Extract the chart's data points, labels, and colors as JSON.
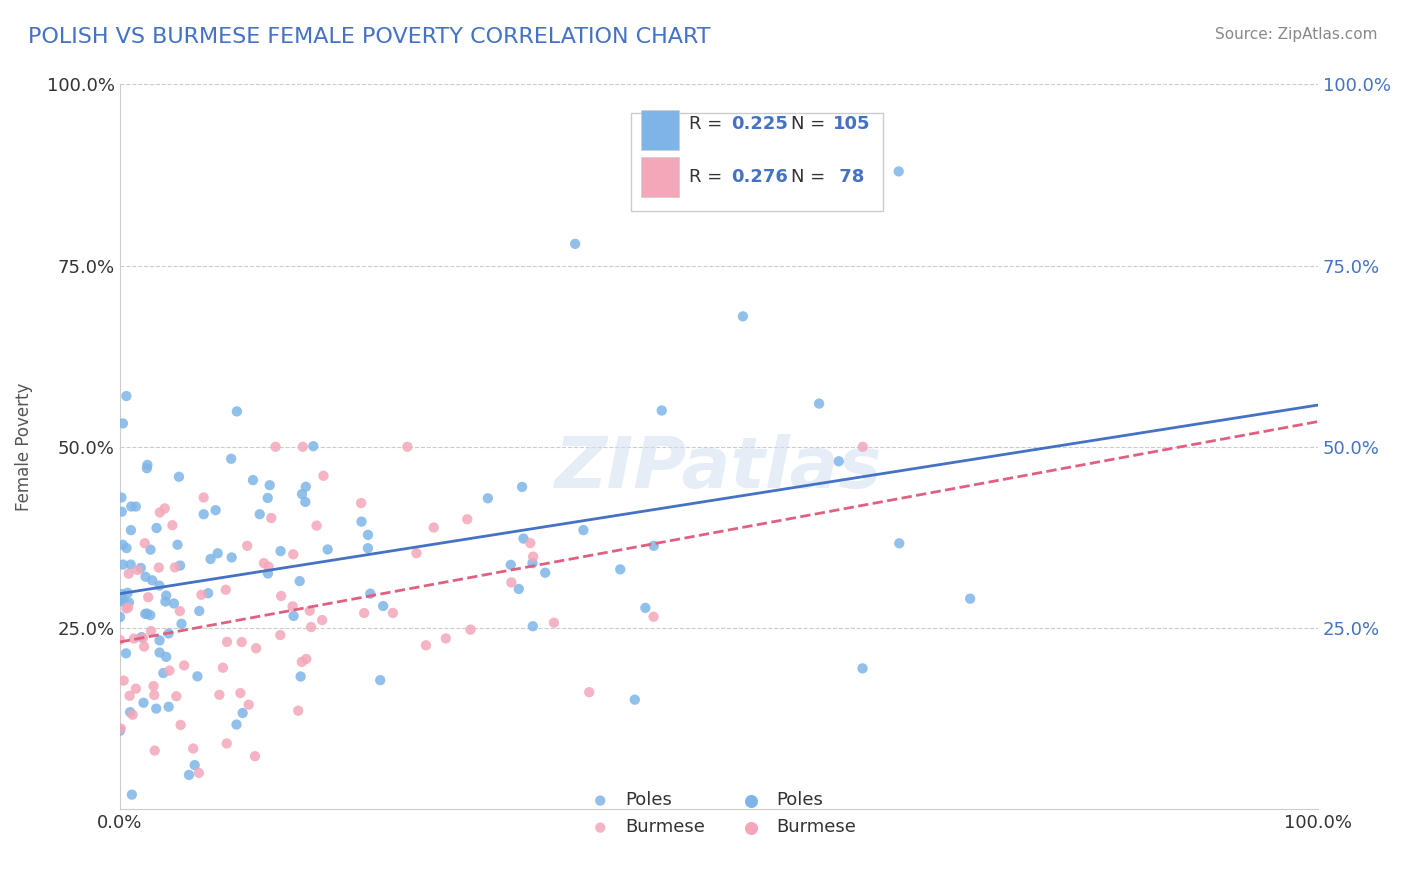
{
  "title": "POLISH VS BURMESE FEMALE POVERTY CORRELATION CHART",
  "source": "Source: ZipAtlas.com",
  "xlabel": "",
  "ylabel": "Female Poverty",
  "xlim": [
    0.0,
    1.0
  ],
  "ylim": [
    0.0,
    1.0
  ],
  "xticks": [
    0.0,
    0.25,
    0.5,
    0.75,
    1.0
  ],
  "xticklabels": [
    "0.0%",
    "",
    "",
    "",
    "100.0%"
  ],
  "yticks": [
    0.0,
    0.25,
    0.5,
    0.75,
    1.0
  ],
  "yticklabels": [
    "",
    "25.0%",
    "50.0%",
    "75.0%",
    "100.0%"
  ],
  "poles_color": "#7eb5e8",
  "burmese_color": "#f4a7b9",
  "poles_line_color": "#4472c4",
  "burmese_line_color": "#e06080",
  "poles_R": 0.225,
  "poles_N": 105,
  "burmese_R": 0.276,
  "burmese_N": 78,
  "watermark": "ZIPatlas",
  "background_color": "#ffffff",
  "grid_color": "#cccccc",
  "title_color": "#4472c4",
  "source_color": "#888888",
  "legend_R_N_color": "#4472c4",
  "legend_label_color": "#333333"
}
